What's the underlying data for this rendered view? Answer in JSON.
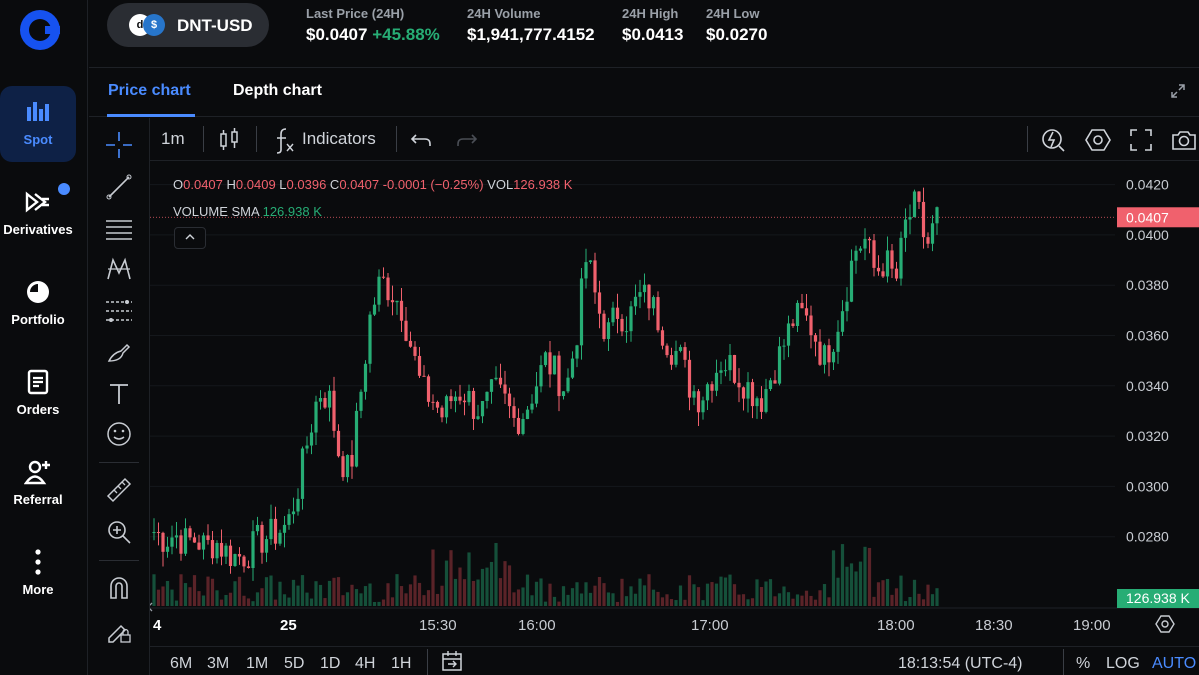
{
  "nav": {
    "items": [
      {
        "label": "Spot",
        "icon": "chart-bars-icon"
      },
      {
        "label": "Derivatives",
        "icon": "derivatives-icon"
      },
      {
        "label": "Portfolio",
        "icon": "pie-icon"
      },
      {
        "label": "Orders",
        "icon": "document-icon"
      },
      {
        "label": "Referral",
        "icon": "add-user-icon"
      },
      {
        "label": "More",
        "icon": "more-vertical-icon"
      }
    ],
    "active": "Spot",
    "accent": "#4a8bff"
  },
  "header": {
    "pair": "DNT-USD",
    "stats": [
      {
        "label": "Last Price (24H)",
        "value": "$0.0407",
        "change": "+45.88%"
      },
      {
        "label": "24H Volume",
        "value": "$1,941,777.4152"
      },
      {
        "label": "24H High",
        "value": "$0.0413"
      },
      {
        "label": "24H Low",
        "value": "$0.0270"
      }
    ]
  },
  "tabs": [
    "Price chart",
    "Depth chart"
  ],
  "toolbar": {
    "interval": "1m",
    "indicators_label": "Indicators"
  },
  "legend": {
    "o_label": "O",
    "o": "0.0407",
    "h_label": "H",
    "h": "0.0409",
    "l_label": "L",
    "l": "0.0396",
    "c_label": "C",
    "c": "0.0407",
    "change": "-0.0001 (−0.25%)",
    "vol_label": "VOL",
    "vol": "126.938 K",
    "sma_label": "VOLUME SMA",
    "sma": "126.938 K"
  },
  "bottom": {
    "ranges": [
      "6M",
      "3M",
      "1M",
      "5D",
      "1D",
      "4H",
      "1H"
    ],
    "time": "18:13:54 (UTC-4)",
    "percent": "%",
    "log": "LOG",
    "auto": "AUTO"
  },
  "chart_data": {
    "type": "candlestick",
    "y_ticks": [
      "0.0420",
      "0.0400",
      "0.0380",
      "0.0360",
      "0.0340",
      "0.0320",
      "0.0300",
      "0.0280"
    ],
    "x_ticks": [
      "4",
      "25",
      "15:30",
      "16:00",
      "17:00",
      "18:00",
      "18:30",
      "19:00"
    ],
    "last_price_label": "0.0407",
    "volume_label": "126.938 K",
    "ylim": [
      0.0262,
      0.0425
    ],
    "up_color": "#27ad75",
    "down_color": "#f0616d",
    "close_path": [
      0.0282,
      0.0279,
      0.0281,
      0.0278,
      0.0279,
      0.0276,
      0.0278,
      0.0274,
      0.0272,
      0.0273,
      0.0278,
      0.028,
      0.0282,
      0.0285,
      0.03,
      0.032,
      0.0338,
      0.0335,
      0.0312,
      0.0305,
      0.0335,
      0.0368,
      0.0382,
      0.0378,
      0.0372,
      0.0355,
      0.0338,
      0.0335,
      0.0328,
      0.0336,
      0.0338,
      0.0332,
      0.033,
      0.0338,
      0.0334,
      0.0326,
      0.033,
      0.034,
      0.035,
      0.0345,
      0.0338,
      0.036,
      0.0392,
      0.0372,
      0.036,
      0.037,
      0.0366,
      0.0375,
      0.0375,
      0.0366,
      0.0356,
      0.0352,
      0.034,
      0.0335,
      0.0343,
      0.035,
      0.0348,
      0.0343,
      0.0338,
      0.0335,
      0.0345,
      0.0355,
      0.0366,
      0.0368,
      0.0362,
      0.035,
      0.036,
      0.0375,
      0.0394,
      0.0398,
      0.0385,
      0.039,
      0.0381,
      0.0405,
      0.0412,
      0.0395,
      0.0407
    ]
  }
}
